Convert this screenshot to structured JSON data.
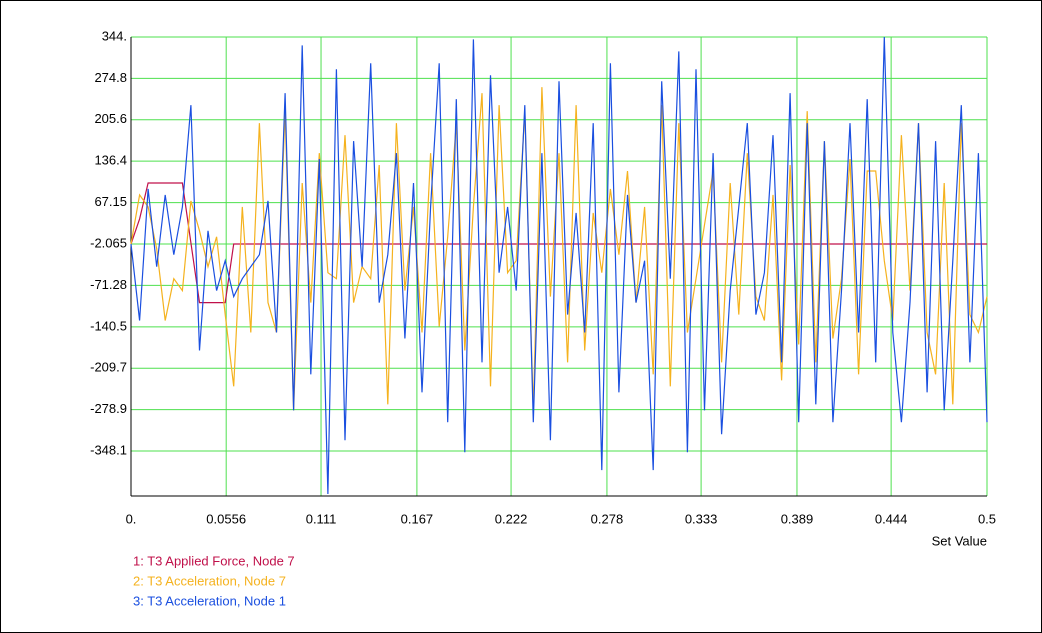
{
  "chart_data": {
    "type": "line",
    "x_label": "Set Value",
    "x": [
      0,
      0.005,
      0.01,
      0.015,
      0.02,
      0.025,
      0.03,
      0.035,
      0.04,
      0.045,
      0.05,
      0.055,
      0.06,
      0.065,
      0.07,
      0.075,
      0.08,
      0.085,
      0.09,
      0.095,
      0.1,
      0.105,
      0.11,
      0.115,
      0.12,
      0.125,
      0.13,
      0.135,
      0.14,
      0.145,
      0.15,
      0.155,
      0.16,
      0.165,
      0.17,
      0.175,
      0.18,
      0.185,
      0.19,
      0.195,
      0.2,
      0.205,
      0.21,
      0.215,
      0.22,
      0.225,
      0.23,
      0.235,
      0.24,
      0.245,
      0.25,
      0.255,
      0.26,
      0.265,
      0.27,
      0.275,
      0.28,
      0.285,
      0.29,
      0.295,
      0.3,
      0.305,
      0.31,
      0.315,
      0.32,
      0.325,
      0.33,
      0.335,
      0.34,
      0.345,
      0.35,
      0.355,
      0.36,
      0.365,
      0.37,
      0.375,
      0.38,
      0.385,
      0.39,
      0.395,
      0.4,
      0.405,
      0.41,
      0.415,
      0.42,
      0.425,
      0.43,
      0.435,
      0.44,
      0.445,
      0.45,
      0.455,
      0.46,
      0.465,
      0.47,
      0.475,
      0.48,
      0.485,
      0.49,
      0.495,
      0.5
    ],
    "series": [
      {
        "name": "1: T3 Applied Force, Node 7",
        "color": "#c0104a",
        "values": [
          -2,
          40,
          100,
          100,
          100,
          100,
          100,
          0,
          -100,
          -100,
          -100,
          -100,
          -2.065,
          -2.065,
          -2.065,
          -2.065,
          -2.065,
          -2.065,
          -2.065,
          -2.065,
          -2.065,
          -2.065,
          -2.065,
          -2.065,
          -2.065,
          -2.065,
          -2.065,
          -2.065,
          -2.065,
          -2.065,
          -2.065,
          -2.065,
          -2.065,
          -2.065,
          -2.065,
          -2.065,
          -2.065,
          -2.065,
          -2.065,
          -2.065,
          -2.065,
          -2.065,
          -2.065,
          -2.065,
          -2.065,
          -2.065,
          -2.065,
          -2.065,
          -2.065,
          -2.065,
          -2.065,
          -2.065,
          -2.065,
          -2.065,
          -2.065,
          -2.065,
          -2.065,
          -2.065,
          -2.065,
          -2.065,
          -2.065,
          -2.065,
          -2.065,
          -2.065,
          -2.065,
          -2.065,
          -2.065,
          -2.065,
          -2.065,
          -2.065,
          -2.065,
          -2.065,
          -2.065,
          -2.065,
          -2.065,
          -2.065,
          -2.065,
          -2.065,
          -2.065,
          -2.065,
          -2.065,
          -2.065,
          -2.065,
          -2.065,
          -2.065,
          -2.065,
          -2.065,
          -2.065,
          -2.065,
          -2.065,
          -2.065,
          -2.065,
          -2.065,
          -2.065,
          -2.065,
          -2.065,
          -2.065,
          -2.065,
          -2.065,
          -2.065,
          -2.065
        ]
      },
      {
        "name": "2: T3 Acceleration, Node 7",
        "color": "#f5b21e",
        "values": [
          -2,
          80,
          60,
          -10,
          -130,
          -60,
          -80,
          70,
          20,
          -40,
          10,
          -120,
          -240,
          60,
          -150,
          200,
          -100,
          -150,
          220,
          -280,
          100,
          -100,
          150,
          -50,
          -60,
          180,
          -100,
          -40,
          -60,
          130,
          -270,
          200,
          -80,
          60,
          -150,
          150,
          -140,
          10,
          200,
          -180,
          60,
          250,
          -240,
          230,
          -50,
          -30,
          220,
          -280,
          260,
          -90,
          150,
          -200,
          230,
          -180,
          50,
          -50,
          90,
          -20,
          120,
          -100,
          60,
          -220,
          230,
          -240,
          200,
          -150,
          -60,
          30,
          120,
          -200,
          100,
          -120,
          150,
          -90,
          -130,
          80,
          -230,
          130,
          -170,
          220,
          -200,
          170,
          -160,
          -60,
          140,
          -220,
          120,
          120,
          -30,
          -130,
          180,
          -80,
          200,
          -150,
          -220,
          100,
          -270,
          200,
          -120,
          -150,
          -90
        ]
      },
      {
        "name": "3: T3 Acceleration, Node 1",
        "color": "#1a4fe0",
        "values": [
          -2,
          -130,
          90,
          -40,
          80,
          -20,
          60,
          230,
          -180,
          20,
          -80,
          -30,
          -90,
          -60,
          -40,
          -20,
          70,
          -150,
          250,
          -280,
          330,
          -220,
          140,
          -420,
          290,
          -330,
          170,
          -40,
          300,
          -100,
          -20,
          150,
          -160,
          100,
          -250,
          60,
          300,
          -300,
          240,
          -350,
          340,
          -200,
          280,
          -50,
          60,
          -80,
          230,
          -300,
          150,
          -330,
          270,
          -120,
          50,
          -150,
          200,
          -380,
          300,
          -250,
          80,
          -100,
          -30,
          -380,
          270,
          -60,
          320,
          -350,
          290,
          -280,
          150,
          -320,
          -80,
          60,
          200,
          -120,
          -50,
          180,
          -200,
          250,
          -300,
          200,
          -270,
          170,
          -300,
          -80,
          200,
          -150,
          240,
          -200,
          344,
          -150,
          -300,
          -100,
          200,
          -250,
          170,
          -280,
          -30,
          230,
          -200,
          150,
          -300
        ]
      }
    ],
    "xlim": [
      0,
      0.5
    ],
    "xticks": [
      {
        "value": 0,
        "label": "0."
      },
      0.0556,
      0.111,
      0.167,
      0.222,
      0.278,
      0.333,
      0.389,
      0.444,
      0.5
    ],
    "ylim": [
      -423.3,
      344
    ],
    "yticks": [
      {
        "value": 344,
        "label": "344."
      },
      274.8,
      205.6,
      136.4,
      67.15,
      -2.065,
      -71.28,
      -140.5,
      -209.7,
      -278.9,
      -348.1
    ],
    "grid": true,
    "grid_color": "#4ee04e"
  }
}
